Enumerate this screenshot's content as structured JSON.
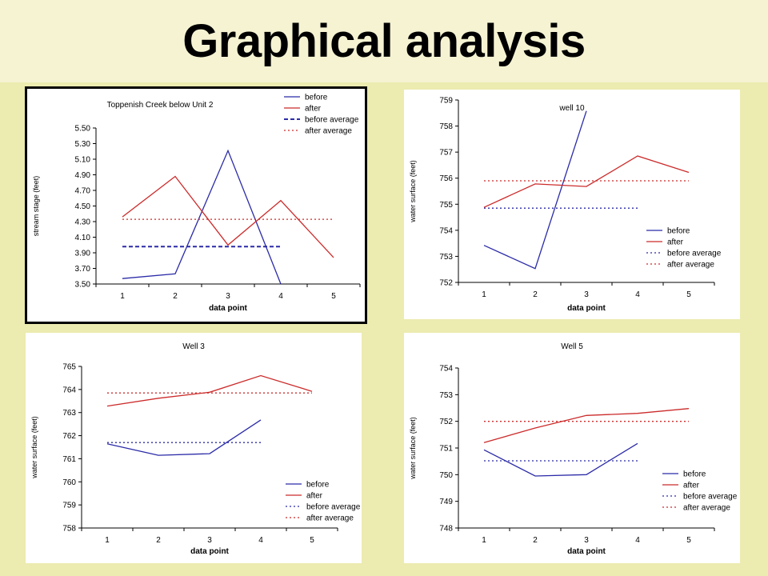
{
  "slide": {
    "title": "Graphical analysis"
  },
  "colors": {
    "before": "#2b2ba8",
    "after": "#cc2b2b",
    "background": "#ecebb0",
    "title_band": "#f5f3d2"
  },
  "chart_data": [
    {
      "type": "line",
      "title": "Toppenish Creek below Unit 2",
      "xlabel": "data point",
      "ylabel": "stream stage (feet)",
      "x": [
        1,
        2,
        3,
        4,
        5
      ],
      "ylim": [
        3.5,
        5.5
      ],
      "yticks": [
        "3.50",
        "3.70",
        "3.90",
        "4.10",
        "4.30",
        "4.50",
        "4.70",
        "4.90",
        "5.10",
        "5.30",
        "5.50"
      ],
      "legend_position": "top-right",
      "series": [
        {
          "name": "before",
          "values": [
            3.57,
            3.63,
            5.21,
            3.5,
            null
          ],
          "style": "solid",
          "color": "#2b2ba8"
        },
        {
          "name": "after",
          "values": [
            4.36,
            4.88,
            4.0,
            4.57,
            3.84
          ],
          "style": "solid",
          "color": "#cc2b2b"
        },
        {
          "name": "before average",
          "values": [
            3.98,
            3.98,
            3.98,
            3.98,
            null
          ],
          "style": "dashed",
          "color": "#2b2ba8"
        },
        {
          "name": "after average",
          "values": [
            4.33,
            4.33,
            4.33,
            4.33,
            4.33
          ],
          "style": "dotted",
          "color": "#cc2b2b"
        }
      ]
    },
    {
      "type": "line",
      "title": "well 10",
      "xlabel": "data point",
      "ylabel": "water surface (feet)",
      "x": [
        1,
        2,
        3,
        4,
        5
      ],
      "ylim": [
        752,
        759
      ],
      "yticks": [
        "752",
        "753",
        "754",
        "755",
        "756",
        "757",
        "758",
        "759"
      ],
      "legend_position": "bottom-right",
      "series": [
        {
          "name": "before",
          "values": [
            753.42,
            752.53,
            758.58,
            null,
            null
          ],
          "style": "solid",
          "color": "#2b2ba8"
        },
        {
          "name": "after",
          "values": [
            754.88,
            755.78,
            755.68,
            756.85,
            756.22
          ],
          "style": "solid",
          "color": "#cc2b2b"
        },
        {
          "name": "before average",
          "values": [
            754.85,
            754.85,
            754.85,
            754.85,
            null
          ],
          "style": "dotted",
          "color": "#2b2ba8"
        },
        {
          "name": "after average",
          "values": [
            755.9,
            755.9,
            755.9,
            755.9,
            755.9
          ],
          "style": "dotted",
          "color": "#cc2b2b"
        }
      ]
    },
    {
      "type": "line",
      "title": "Well 3",
      "xlabel": "data point",
      "ylabel": "water surface (feet)",
      "x": [
        1,
        2,
        3,
        4,
        5
      ],
      "ylim": [
        758,
        765
      ],
      "yticks": [
        "758",
        "759",
        "760",
        "761",
        "762",
        "763",
        "764",
        "765"
      ],
      "legend_position": "bottom-right",
      "series": [
        {
          "name": "before",
          "values": [
            761.65,
            761.15,
            761.22,
            762.68,
            null
          ],
          "style": "solid",
          "color": "#2b2ba8"
        },
        {
          "name": "after",
          "values": [
            763.28,
            763.62,
            763.88,
            764.6,
            763.92
          ],
          "style": "solid",
          "color": "#cc2b2b"
        },
        {
          "name": "before average",
          "values": [
            761.7,
            761.7,
            761.7,
            761.7,
            null
          ],
          "style": "dotted",
          "color": "#2b2ba8"
        },
        {
          "name": "after average",
          "values": [
            763.85,
            763.85,
            763.85,
            763.85,
            763.85
          ],
          "style": "dotted",
          "color": "#cc2b2b"
        }
      ]
    },
    {
      "type": "line",
      "title": "Well 5",
      "xlabel": "data point",
      "ylabel": "water surface (feet)",
      "x": [
        1,
        2,
        3,
        4,
        5
      ],
      "ylim": [
        748,
        754
      ],
      "yticks": [
        "748",
        "749",
        "750",
        "751",
        "752",
        "753",
        "754"
      ],
      "legend_position": "bottom-right",
      "series": [
        {
          "name": "before",
          "values": [
            750.93,
            749.95,
            750.0,
            751.17,
            null
          ],
          "style": "solid",
          "color": "#2b2ba8"
        },
        {
          "name": "after",
          "values": [
            751.2,
            751.75,
            752.22,
            752.3,
            752.48
          ],
          "style": "solid",
          "color": "#cc2b2b"
        },
        {
          "name": "before average",
          "values": [
            750.52,
            750.52,
            750.52,
            750.52,
            null
          ],
          "style": "dotted",
          "color": "#2b2ba8"
        },
        {
          "name": "after average",
          "values": [
            752.0,
            752.0,
            752.0,
            752.0,
            752.0
          ],
          "style": "dotted",
          "color": "#cc2b2b"
        }
      ]
    }
  ]
}
